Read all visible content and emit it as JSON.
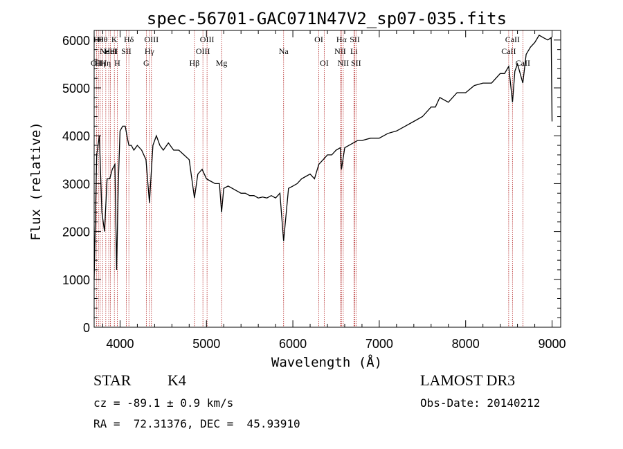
{
  "chart_data": {
    "type": "line",
    "title": "spec-56701-GAC071N47V2_sp07-035.fits",
    "xlabel": "Wavelength (Å)",
    "ylabel": "Flux (relative)",
    "xlim": [
      3700,
      9100
    ],
    "ylim": [
      0,
      6200
    ],
    "xticks": [
      4000,
      5000,
      6000,
      7000,
      8000,
      9000
    ],
    "yticks": [
      0,
      1000,
      2000,
      3000,
      4000,
      5000,
      6000
    ],
    "grid": false,
    "line_color": "#000000",
    "marker_color": "#b22222",
    "series": [
      {
        "x": [
          3700,
          3730,
          3760,
          3790,
          3820,
          3850,
          3880,
          3910,
          3940,
          3960,
          3980,
          4000,
          4030,
          4060,
          4090,
          4102,
          4130,
          4160,
          4200,
          4250,
          4300,
          4340,
          4380,
          4420,
          4460,
          4500,
          4560,
          4620,
          4680,
          4740,
          4800,
          4861,
          4900,
          4950,
          5000,
          5050,
          5100,
          5150,
          5175,
          5200,
          5250,
          5300,
          5350,
          5400,
          5450,
          5500,
          5550,
          5600,
          5650,
          5700,
          5750,
          5800,
          5850,
          5893,
          5950,
          6000,
          6050,
          6100,
          6150,
          6200,
          6250,
          6300,
          6350,
          6400,
          6450,
          6500,
          6550,
          6563,
          6600,
          6650,
          6700,
          6750,
          6800,
          6900,
          7000,
          7100,
          7200,
          7300,
          7400,
          7500,
          7600,
          7650,
          7700,
          7800,
          7900,
          8000,
          8100,
          8200,
          8300,
          8400,
          8450,
          8498,
          8542,
          8570,
          8600,
          8662,
          8700,
          8750,
          8800,
          8850,
          8900,
          8950,
          8990,
          9000
        ],
        "y": [
          1000,
          3600,
          4000,
          2400,
          2000,
          3100,
          3100,
          3300,
          3400,
          1200,
          3000,
          4100,
          4200,
          4200,
          3900,
          3800,
          3800,
          3700,
          3800,
          3700,
          3500,
          2600,
          3800,
          4000,
          3800,
          3700,
          3850,
          3700,
          3700,
          3600,
          3500,
          2700,
          3200,
          3300,
          3100,
          3050,
          3000,
          3000,
          2400,
          2900,
          2950,
          2900,
          2850,
          2800,
          2800,
          2750,
          2750,
          2700,
          2720,
          2700,
          2750,
          2700,
          2800,
          1800,
          2900,
          2950,
          3000,
          3100,
          3150,
          3200,
          3100,
          3400,
          3500,
          3600,
          3600,
          3700,
          3750,
          3300,
          3750,
          3800,
          3850,
          3900,
          3900,
          3950,
          3950,
          4050,
          4100,
          4200,
          4300,
          4400,
          4600,
          4600,
          4800,
          4700,
          4900,
          4900,
          5050,
          5100,
          5100,
          5300,
          5300,
          5450,
          4700,
          5350,
          5500,
          5100,
          5700,
          5850,
          5950,
          6100,
          6050,
          6000,
          6050,
          4300
        ]
      }
    ],
    "line_markers": [
      {
        "wl": 3727,
        "label": "OII",
        "row": 3
      },
      {
        "wl": 3750,
        "label": "Hθ",
        "row": 1
      },
      {
        "wl": 3770,
        "label": "Hη",
        "row": 3
      },
      {
        "wl": 3798,
        "label": "Hθ",
        "row": 1
      },
      {
        "wl": 3835,
        "label": "Hη",
        "row": 3
      },
      {
        "wl": 3869,
        "label": "NeIII",
        "row": 2
      },
      {
        "wl": 3889,
        "label": "HeI",
        "row": 2
      },
      {
        "wl": 3934,
        "label": "K",
        "row": 1
      },
      {
        "wl": 3968,
        "label": "H",
        "row": 3
      },
      {
        "wl": 4072,
        "label": "SII",
        "row": 2
      },
      {
        "wl": 4102,
        "label": "Hδ",
        "row": 1
      },
      {
        "wl": 4304,
        "label": "G",
        "row": 3
      },
      {
        "wl": 4340,
        "label": "Hγ",
        "row": 2
      },
      {
        "wl": 4363,
        "label": "OIII",
        "row": 1
      },
      {
        "wl": 4861,
        "label": "Hβ",
        "row": 3
      },
      {
        "wl": 4959,
        "label": "OIII",
        "row": 2
      },
      {
        "wl": 5007,
        "label": "OIII",
        "row": 1
      },
      {
        "wl": 5175,
        "label": "Mg",
        "row": 3
      },
      {
        "wl": 5893,
        "label": "Na",
        "row": 2
      },
      {
        "wl": 6300,
        "label": "OI",
        "row": 1
      },
      {
        "wl": 6363,
        "label": "OI",
        "row": 3
      },
      {
        "wl": 6548,
        "label": "NII",
        "row": 2
      },
      {
        "wl": 6563,
        "label": "Hα",
        "row": 1
      },
      {
        "wl": 6583,
        "label": "NII",
        "row": 3
      },
      {
        "wl": 6707,
        "label": "Li",
        "row": 2
      },
      {
        "wl": 6717,
        "label": "SII",
        "row": 1
      },
      {
        "wl": 6731,
        "label": "SII",
        "row": 3
      },
      {
        "wl": 8498,
        "label": "CaII",
        "row": 2
      },
      {
        "wl": 8542,
        "label": "CaII",
        "row": 1
      },
      {
        "wl": 8662,
        "label": "CaII",
        "row": 3
      }
    ]
  },
  "info": {
    "class": "STAR",
    "subclass": "K4",
    "cz": "cz = -89.1 ± 0.9 km/s",
    "coords": "RA =  72.31376, DEC =  45.93910",
    "survey": "LAMOST DR3",
    "obs_date": "Obs-Date: 20140212"
  }
}
